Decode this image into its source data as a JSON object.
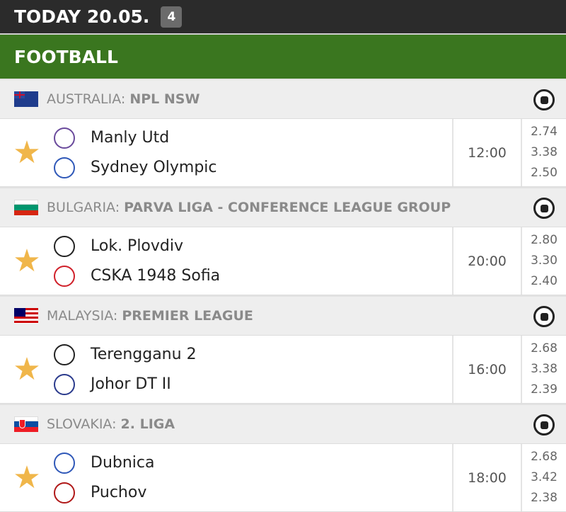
{
  "header": {
    "title": "TODAY 20.05.",
    "count": "4"
  },
  "sport": {
    "title": "FOOTBALL",
    "icon": "football-icon"
  },
  "leagues": [
    {
      "country": "AUSTRALIA:",
      "name": "NPL NSW",
      "match": {
        "home": "Manly Utd",
        "away": "Sydney Olympic",
        "time": "12:00",
        "odds": [
          "2.74",
          "3.38",
          "2.50"
        ]
      }
    },
    {
      "country": "BULGARIA:",
      "name": "PARVA LIGA - CONFERENCE LEAGUE GROUP",
      "match": {
        "home": "Lok. Plovdiv",
        "away": "CSKA 1948 Sofia",
        "time": "20:00",
        "odds": [
          "2.80",
          "3.30",
          "2.40"
        ]
      }
    },
    {
      "country": "MALAYSIA:",
      "name": "PREMIER LEAGUE",
      "match": {
        "home": "Terengganu 2",
        "away": "Johor DT II",
        "time": "16:00",
        "odds": [
          "2.68",
          "3.38",
          "2.39"
        ]
      }
    },
    {
      "country": "SLOVAKIA:",
      "name": "2. LIGA",
      "match": {
        "home": "Dubnica",
        "away": "Puchov",
        "time": "18:00",
        "odds": [
          "2.68",
          "3.42",
          "2.38"
        ]
      }
    }
  ],
  "colors": {
    "header": "#2b2b2b",
    "sport_bar": "#3a761f",
    "star": "#f0b64a"
  }
}
